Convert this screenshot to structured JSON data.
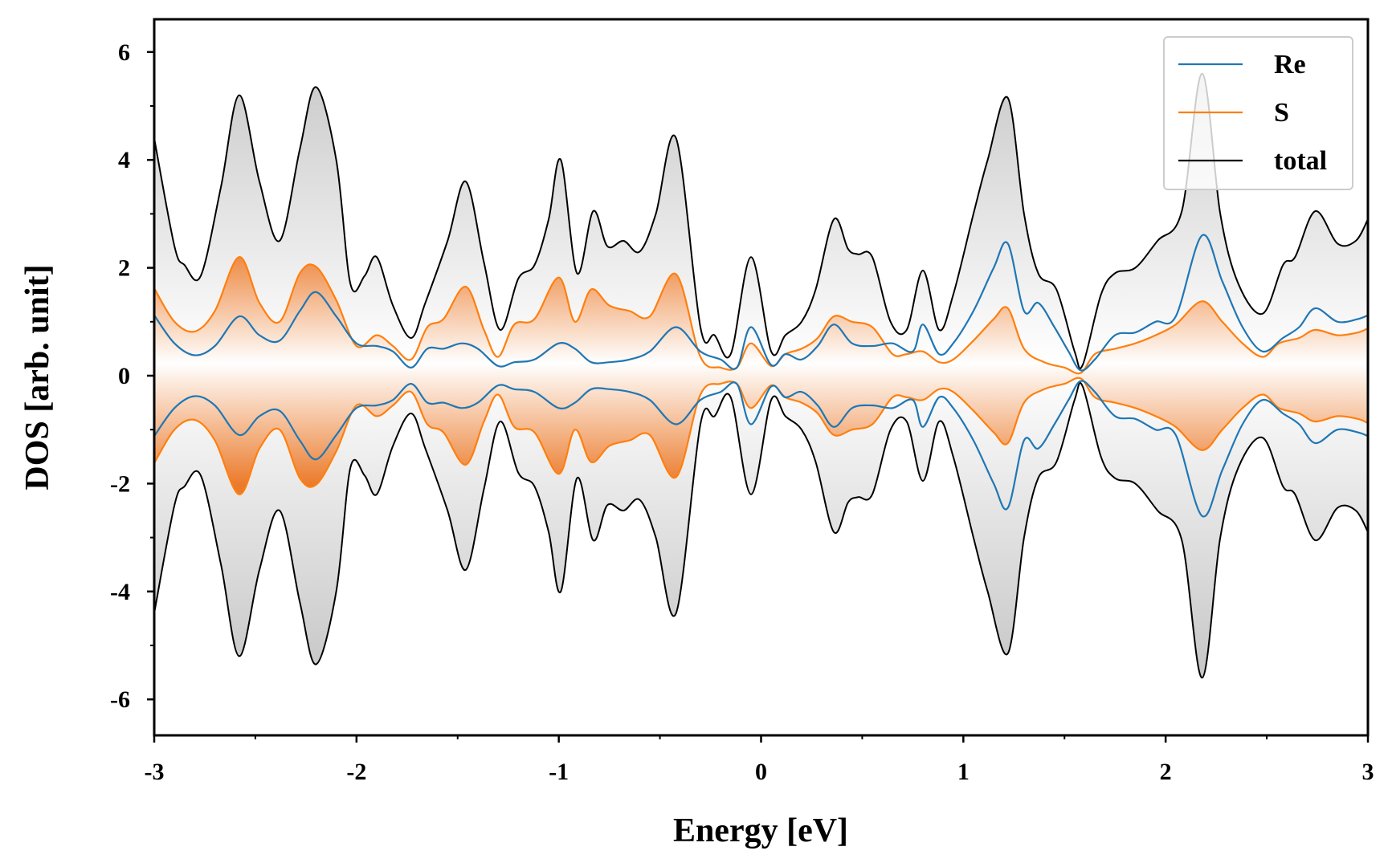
{
  "chart_data": {
    "type": "line",
    "xlabel": "Energy [eV]",
    "ylabel": "DOS [arb. unit]",
    "xlim": [
      -3,
      3
    ],
    "ylim": [
      -6.6,
      6.6
    ],
    "xticks": [
      -3,
      -2,
      -1,
      0,
      1,
      2,
      3
    ],
    "xtick_labels": [
      "-3",
      "-2",
      "-1",
      "0",
      "1",
      "2",
      "3"
    ],
    "yticks": [
      -6,
      -4,
      -2,
      0,
      2,
      4,
      6
    ],
    "ytick_labels": [
      "-6",
      "-4",
      "-2",
      "0",
      "2",
      "4",
      "6"
    ],
    "mirrored": true,
    "grid": false,
    "legend_position": "top-right",
    "series": [
      {
        "name": "total",
        "color": "#000000",
        "fill": "gray",
        "x": [
          -3.0,
          -2.9,
          -2.85,
          -2.77,
          -2.67,
          -2.58,
          -2.48,
          -2.38,
          -2.28,
          -2.2,
          -2.1,
          -2.03,
          -1.96,
          -1.9,
          -1.82,
          -1.73,
          -1.66,
          -1.55,
          -1.46,
          -1.37,
          -1.29,
          -1.2,
          -1.12,
          -1.05,
          -0.99,
          -0.91,
          -0.83,
          -0.76,
          -0.68,
          -0.6,
          -0.52,
          -0.42,
          -0.3,
          -0.23,
          -0.15,
          -0.05,
          0.05,
          0.12,
          0.2,
          0.27,
          0.36,
          0.43,
          0.48,
          0.55,
          0.64,
          0.72,
          0.8,
          0.88,
          0.95,
          1.05,
          1.12,
          1.22,
          1.3,
          1.37,
          1.46,
          1.55,
          1.59,
          1.68,
          1.75,
          1.85,
          1.96,
          2.08,
          2.18,
          2.27,
          2.36,
          2.48,
          2.58,
          2.64,
          2.74,
          2.85,
          2.94,
          3.0
        ],
        "values": [
          4.4,
          2.4,
          2.05,
          1.85,
          3.5,
          5.2,
          3.6,
          2.5,
          4.2,
          5.35,
          4.0,
          1.7,
          1.85,
          2.2,
          1.3,
          0.7,
          1.35,
          2.5,
          3.6,
          2.1,
          0.85,
          1.8,
          2.05,
          2.9,
          4.0,
          1.9,
          3.05,
          2.4,
          2.5,
          2.3,
          3.0,
          4.4,
          0.9,
          0.75,
          0.4,
          2.2,
          0.45,
          0.75,
          1.0,
          1.6,
          2.9,
          2.35,
          2.25,
          2.2,
          1.0,
          0.85,
          1.95,
          0.85,
          1.5,
          3.0,
          4.0,
          5.15,
          3.0,
          1.9,
          1.6,
          0.45,
          0.2,
          1.5,
          1.9,
          2.0,
          2.5,
          3.05,
          5.6,
          3.0,
          1.7,
          1.15,
          2.05,
          2.2,
          3.05,
          2.45,
          2.5,
          2.9
        ]
      },
      {
        "name": "Re",
        "color": "#1f77b4",
        "fill": "none",
        "x": [
          -3.0,
          -2.9,
          -2.8,
          -2.7,
          -2.58,
          -2.48,
          -2.38,
          -2.28,
          -2.2,
          -2.1,
          -2.0,
          -1.9,
          -1.82,
          -1.73,
          -1.65,
          -1.57,
          -1.48,
          -1.4,
          -1.3,
          -1.22,
          -1.12,
          -1.0,
          -0.92,
          -0.84,
          -0.75,
          -0.65,
          -0.55,
          -0.42,
          -0.3,
          -0.2,
          -0.12,
          -0.05,
          0.05,
          0.12,
          0.2,
          0.28,
          0.36,
          0.45,
          0.55,
          0.65,
          0.75,
          0.8,
          0.88,
          0.95,
          1.05,
          1.15,
          1.22,
          1.3,
          1.37,
          1.45,
          1.52,
          1.58,
          1.65,
          1.75,
          1.85,
          1.95,
          2.05,
          2.18,
          2.28,
          2.38,
          2.48,
          2.58,
          2.66,
          2.74,
          2.85,
          2.95,
          3.0
        ],
        "values": [
          1.12,
          0.6,
          0.38,
          0.55,
          1.1,
          0.75,
          0.65,
          1.2,
          1.55,
          1.1,
          0.6,
          0.55,
          0.45,
          0.15,
          0.5,
          0.5,
          0.6,
          0.5,
          0.18,
          0.25,
          0.3,
          0.6,
          0.5,
          0.25,
          0.25,
          0.3,
          0.45,
          0.9,
          0.45,
          0.3,
          0.15,
          0.9,
          0.2,
          0.4,
          0.3,
          0.55,
          0.95,
          0.6,
          0.55,
          0.6,
          0.45,
          0.95,
          0.4,
          0.6,
          1.2,
          2.0,
          2.45,
          1.2,
          1.35,
          0.9,
          0.45,
          0.1,
          0.3,
          0.75,
          0.8,
          1.0,
          1.1,
          2.6,
          1.75,
          0.9,
          0.45,
          0.7,
          0.9,
          1.25,
          1.0,
          1.05,
          1.12
        ]
      },
      {
        "name": "S",
        "color": "#ff7f0e",
        "fill": "orange",
        "x": [
          -3.0,
          -2.9,
          -2.8,
          -2.7,
          -2.58,
          -2.48,
          -2.38,
          -2.28,
          -2.2,
          -2.1,
          -2.0,
          -1.9,
          -1.82,
          -1.73,
          -1.65,
          -1.57,
          -1.46,
          -1.37,
          -1.3,
          -1.22,
          -1.12,
          -1.0,
          -0.92,
          -0.84,
          -0.75,
          -0.65,
          -0.55,
          -0.42,
          -0.3,
          -0.2,
          -0.12,
          -0.05,
          0.05,
          0.12,
          0.2,
          0.28,
          0.36,
          0.45,
          0.55,
          0.65,
          0.72,
          0.8,
          0.88,
          0.95,
          1.05,
          1.15,
          1.22,
          1.3,
          1.4,
          1.5,
          1.58,
          1.65,
          1.75,
          1.85,
          1.95,
          2.05,
          2.18,
          2.28,
          2.38,
          2.48,
          2.56,
          2.66,
          2.74,
          2.85,
          2.95,
          3.0
        ],
        "values": [
          1.62,
          1.0,
          0.82,
          1.2,
          2.2,
          1.35,
          1.0,
          1.9,
          2.02,
          1.4,
          0.55,
          0.75,
          0.55,
          0.3,
          0.9,
          1.05,
          1.65,
          0.85,
          0.35,
          0.95,
          1.05,
          1.82,
          1.0,
          1.6,
          1.3,
          1.2,
          1.1,
          1.88,
          0.35,
          0.15,
          0.15,
          0.6,
          0.18,
          0.4,
          0.5,
          0.7,
          1.1,
          1.0,
          0.9,
          0.4,
          0.4,
          0.45,
          0.25,
          0.3,
          0.65,
          1.05,
          1.25,
          0.5,
          0.25,
          0.15,
          0.05,
          0.4,
          0.5,
          0.6,
          0.75,
          0.95,
          1.38,
          1.0,
          0.6,
          0.35,
          0.6,
          0.7,
          0.85,
          0.75,
          0.8,
          0.88
        ]
      }
    ]
  }
}
